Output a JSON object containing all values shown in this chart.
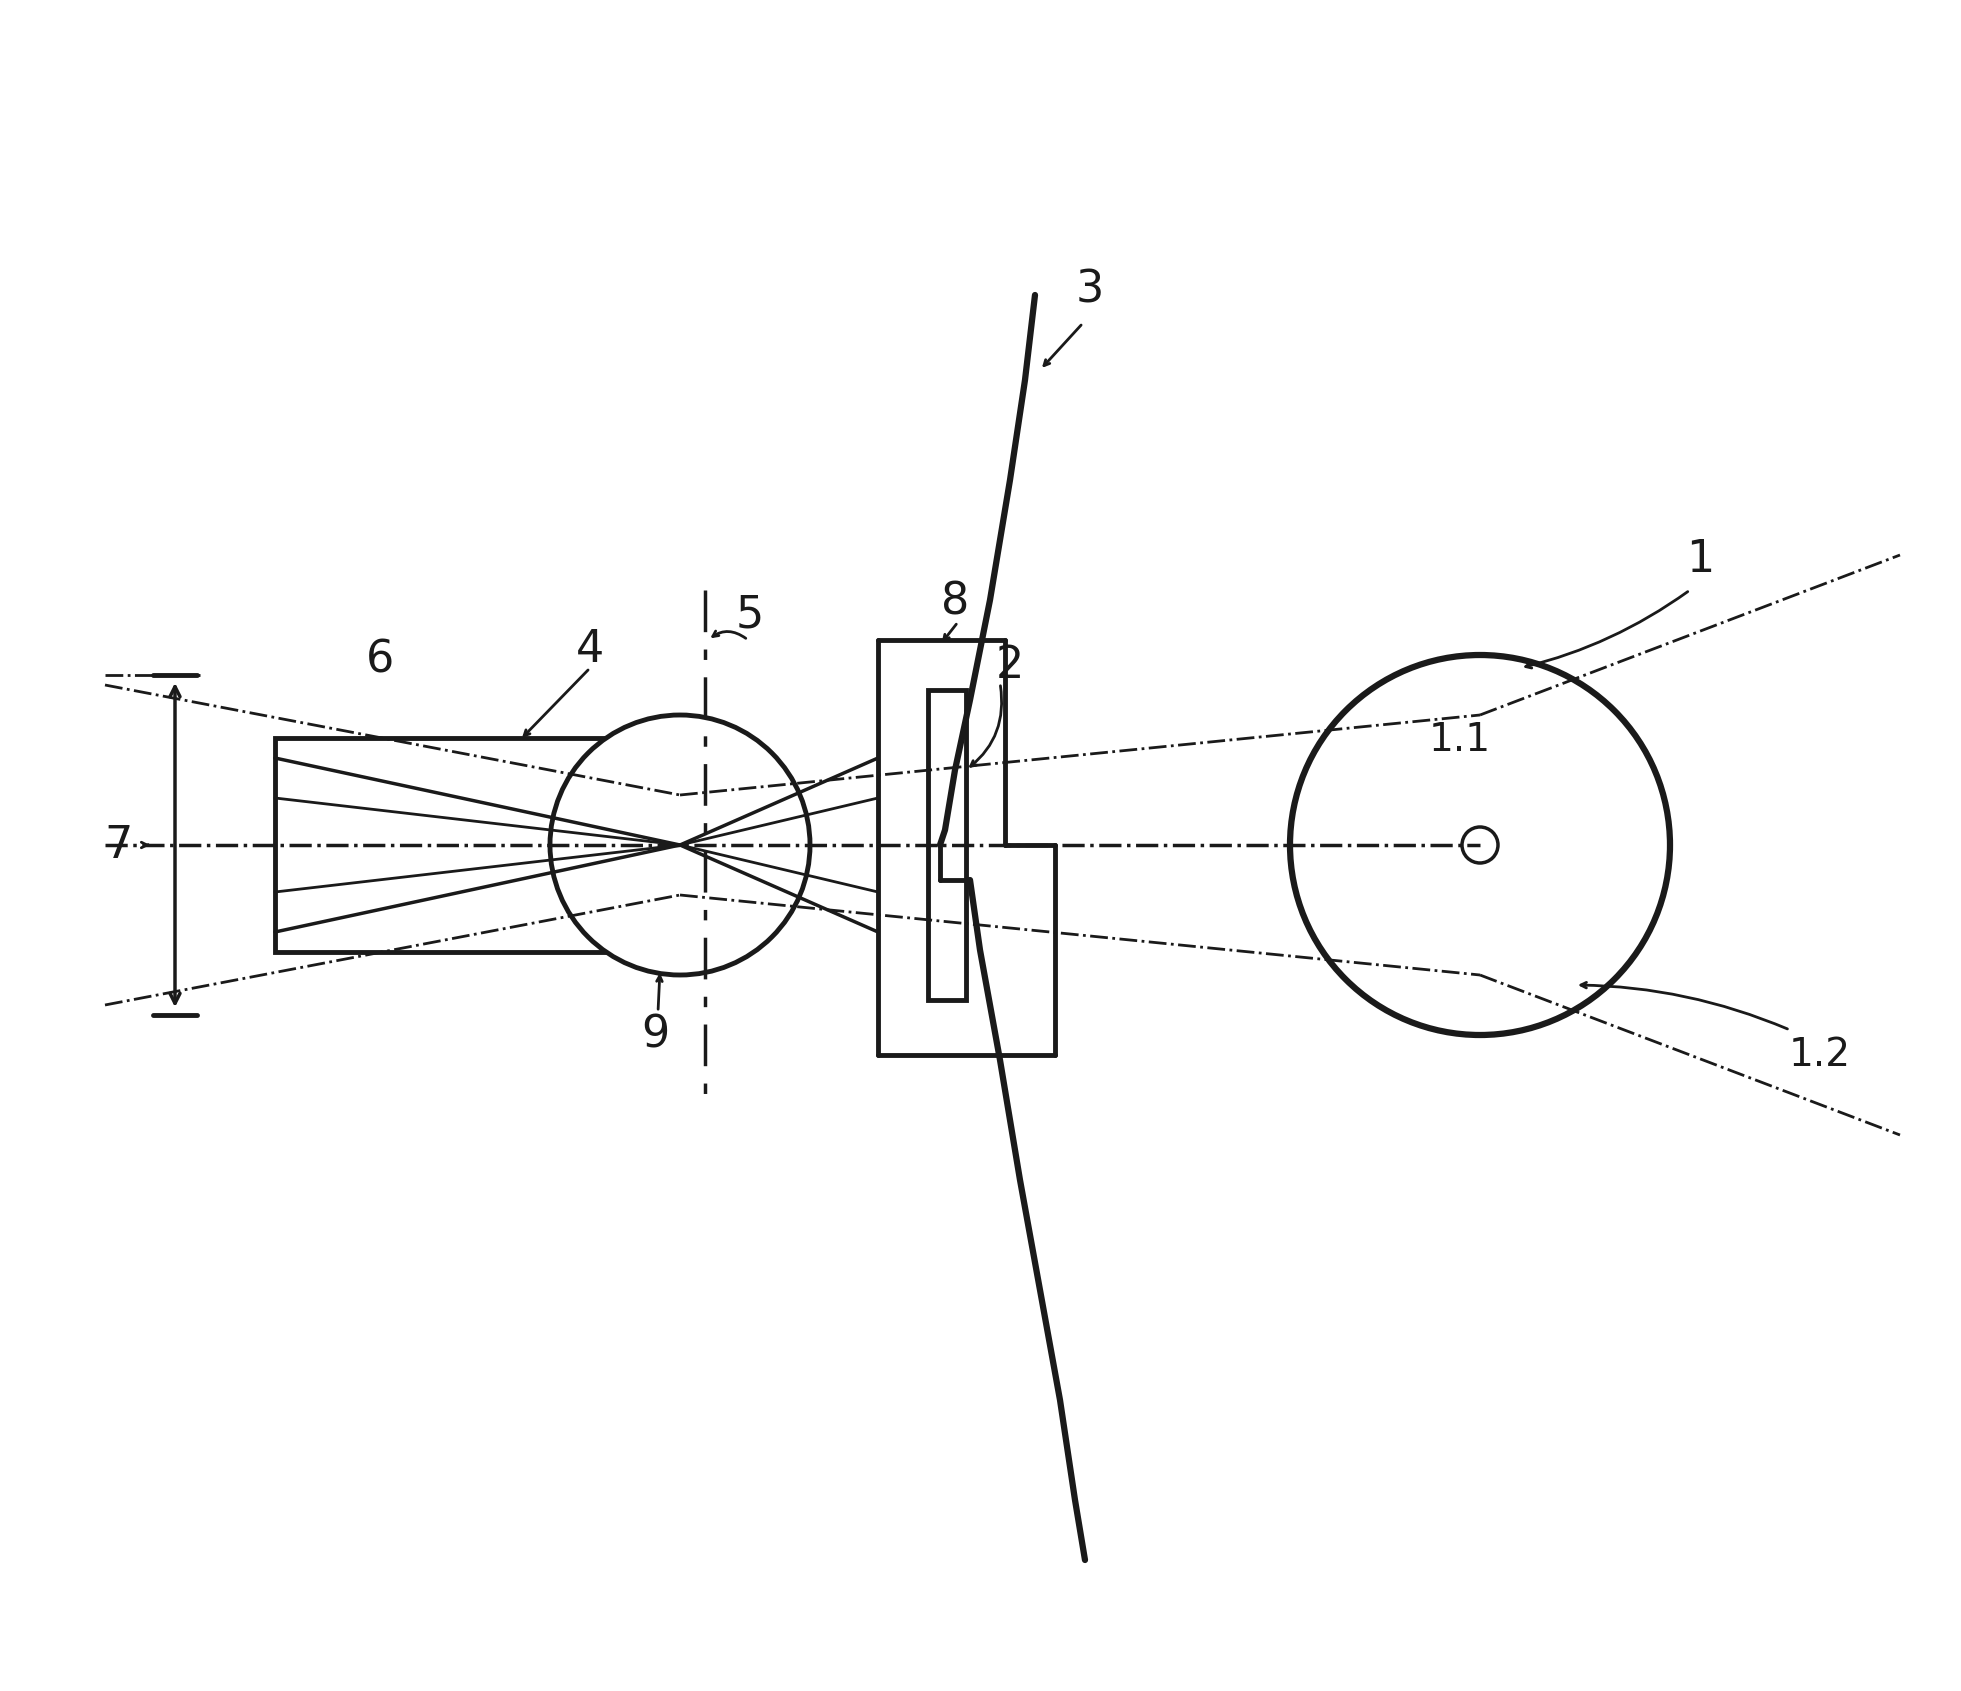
{
  "bg_color": "#ffffff",
  "line_color": "#1a1a1a",
  "figsize": [
    19.61,
    16.91
  ],
  "dpi": 100,
  "xlim": [
    0,
    1961
  ],
  "ylim": [
    0,
    1691
  ]
}
